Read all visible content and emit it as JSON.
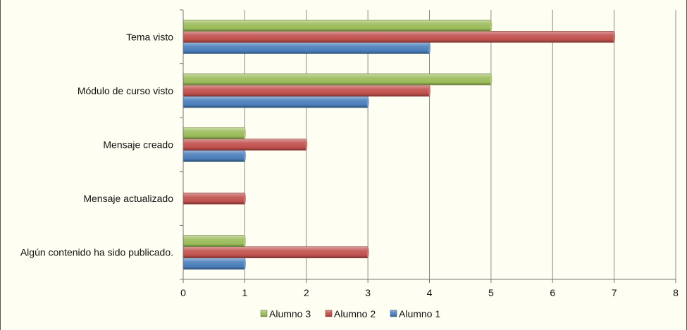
{
  "chart_data": {
    "type": "bar",
    "orientation": "horizontal",
    "categories": [
      "Tema visto",
      "Módulo de curso visto",
      "Mensaje creado",
      "Mensaje actualizado",
      "Algún contenido ha sido publicado."
    ],
    "series": [
      {
        "name": "Alumno 1",
        "color": "#4a7ebb",
        "values": [
          4,
          3,
          1,
          0,
          1
        ]
      },
      {
        "name": "Alumno 2",
        "color": "#c0504d",
        "values": [
          7,
          4,
          2,
          1,
          3
        ]
      },
      {
        "name": "Alumno 3",
        "color": "#9bbb59",
        "values": [
          5,
          5,
          1,
          0,
          1
        ]
      }
    ],
    "xlim": [
      0,
      8
    ],
    "xticks": [
      "0",
      "1",
      "2",
      "3",
      "4",
      "5",
      "6",
      "7",
      "8"
    ],
    "grid": true,
    "legend": "bottom",
    "legend_order": [
      "Alumno 3",
      "Alumno 2",
      "Alumno 1"
    ]
  }
}
